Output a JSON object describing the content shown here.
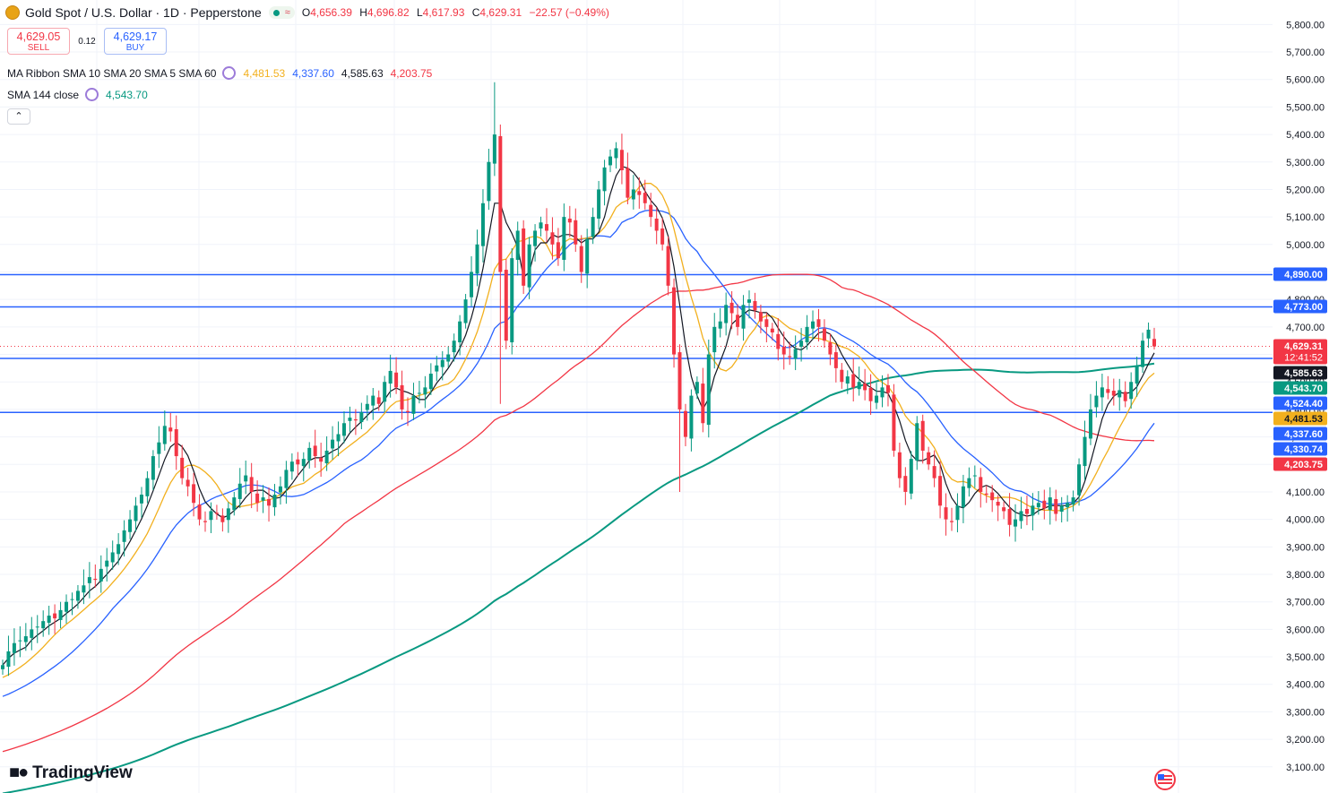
{
  "header": {
    "symbol": "Gold Spot / U.S. Dollar · 1D · Pepperstone",
    "pill_text": "≈",
    "ohlc": {
      "o_label": "O",
      "o": "4,656.39",
      "h_label": "H",
      "h": "4,696.82",
      "l_label": "L",
      "l": "4,617.93",
      "c_label": "C",
      "c": "4,629.31",
      "change": "−22.57 (−0.49%)"
    }
  },
  "trade": {
    "sell_price": "4,629.05",
    "sell_label": "SELL",
    "spread": "0.12",
    "buy_price": "4,629.17",
    "buy_label": "BUY"
  },
  "indicators": {
    "ribbon_label": "MA Ribbon SMA 10 SMA 20 SMA 5 SMA 60",
    "ribbon_values": [
      "4,481.53",
      "4,337.60",
      "4,585.63",
      "4,203.75"
    ],
    "sma144_label": "SMA 144 close",
    "sma144_value": "4,543.70"
  },
  "collapse_icon": "chevron-up-icon",
  "branding": "TradingView",
  "colors": {
    "up": "#089981",
    "down": "#f23645",
    "sma5": "#131722",
    "sma10": "#f2b01e",
    "sma20": "#2962ff",
    "sma60": "#f23645",
    "sma144": "#089981",
    "hline": "#2962ff"
  },
  "chart_data": {
    "type": "candlestick",
    "y_axis_ticks": [
      "3,100.00",
      "3,200.00",
      "3,300.00",
      "3,400.00",
      "3,500.00",
      "3,600.00",
      "3,700.00",
      "3,800.00",
      "3,900.00",
      "4,000.00",
      "4,100.00",
      "4,200.00",
      "4,300.00",
      "4,400.00",
      "4,500.00",
      "4,600.00",
      "4,700.00",
      "4,800.00",
      "4,900.00",
      "5,000.00",
      "5,100.00",
      "5,200.00",
      "5,300.00",
      "5,400.00",
      "5,500.00",
      "5,600.00",
      "5,700.00",
      "5,800.00"
    ],
    "ylim": [
      3070,
      5850
    ],
    "horizontal_lines": [
      4890.0,
      4773.0,
      4585.63,
      4389.0
    ],
    "price_labels": [
      {
        "text": "4,890.00",
        "price": 4890.0,
        "color": "#2962ff"
      },
      {
        "text": "4,773.00",
        "price": 4773.0,
        "color": "#2962ff"
      },
      {
        "text": "4,629.31",
        "price": 4629.31,
        "color": "#f23645",
        "sub": "12:41:52"
      },
      {
        "text": "4,585.63",
        "price": 4585.63,
        "color": "#131722"
      },
      {
        "text": "4,543.70",
        "price": 4543.7,
        "color": "#089981"
      },
      {
        "text": "4,524.40",
        "price": 4524.4,
        "color": "#2962ff"
      },
      {
        "text": "4,481.53",
        "price": 4481.53,
        "color": "#f2b01e",
        "dark_text": true
      },
      {
        "text": "4,337.60",
        "price": 4337.6,
        "color": "#2962ff"
      },
      {
        "text": "4,330.74",
        "price": 4330.74,
        "color": "#2962ff"
      },
      {
        "text": "4,203.75",
        "price": 4203.75,
        "color": "#f23645"
      }
    ],
    "last_price": 4629.31,
    "closes": [
      3470,
      3520,
      3550,
      3560,
      3575,
      3600,
      3610,
      3630,
      3650,
      3640,
      3670,
      3700,
      3710,
      3740,
      3760,
      3790,
      3780,
      3820,
      3850,
      3880,
      3910,
      3960,
      4000,
      4050,
      4090,
      4150,
      4230,
      4280,
      4340,
      4320,
      4230,
      4150,
      4120,
      4060,
      4000,
      3990,
      4030,
      4020,
      3990,
      4040,
      4080,
      4130,
      4160,
      4100,
      4060,
      4080,
      4050,
      4090,
      4120,
      4180,
      4210,
      4200,
      4220,
      4260,
      4230,
      4210,
      4250,
      4290,
      4310,
      4350,
      4370,
      4360,
      4390,
      4420,
      4450,
      4420,
      4500,
      4540,
      4480,
      4400,
      4390,
      4450,
      4460,
      4480,
      4530,
      4560,
      4580,
      4600,
      4650,
      4720,
      4800,
      4900,
      5000,
      5150,
      5300,
      5400,
      4900,
      4650,
      4950,
      5050,
      4850,
      5000,
      5050,
      5080,
      5050,
      5000,
      4950,
      5100,
      5080,
      5000,
      4900,
      5020,
      5100,
      5200,
      5280,
      5320,
      5350,
      5270,
      5170,
      5200,
      5180,
      5150,
      5100,
      5050,
      5000,
      4850,
      4600,
      4400,
      4300,
      4450,
      4500,
      4350,
      4600,
      4700,
      4720,
      4780,
      4750,
      4700,
      4780,
      4800,
      4760,
      4720,
      4700,
      4680,
      4620,
      4600,
      4590,
      4620,
      4650,
      4700,
      4720,
      4700,
      4650,
      4600,
      4550,
      4500,
      4520,
      4480,
      4500,
      4470,
      4430,
      4450,
      4480,
      4460,
      4250,
      4150,
      4100,
      4220,
      4350,
      4250,
      4200,
      4150,
      4050,
      4000,
      3990,
      4050,
      4120,
      4150,
      4160,
      4100,
      4090,
      4070,
      4050,
      4030,
      3980,
      4000,
      4030,
      4020,
      4050,
      4060,
      4040,
      4080,
      4020,
      4050,
      4060,
      4080,
      4200,
      4300,
      4400,
      4450,
      4480,
      4460,
      4450,
      4470,
      4430,
      4500,
      4560,
      4650,
      4690,
      4629
    ]
  }
}
